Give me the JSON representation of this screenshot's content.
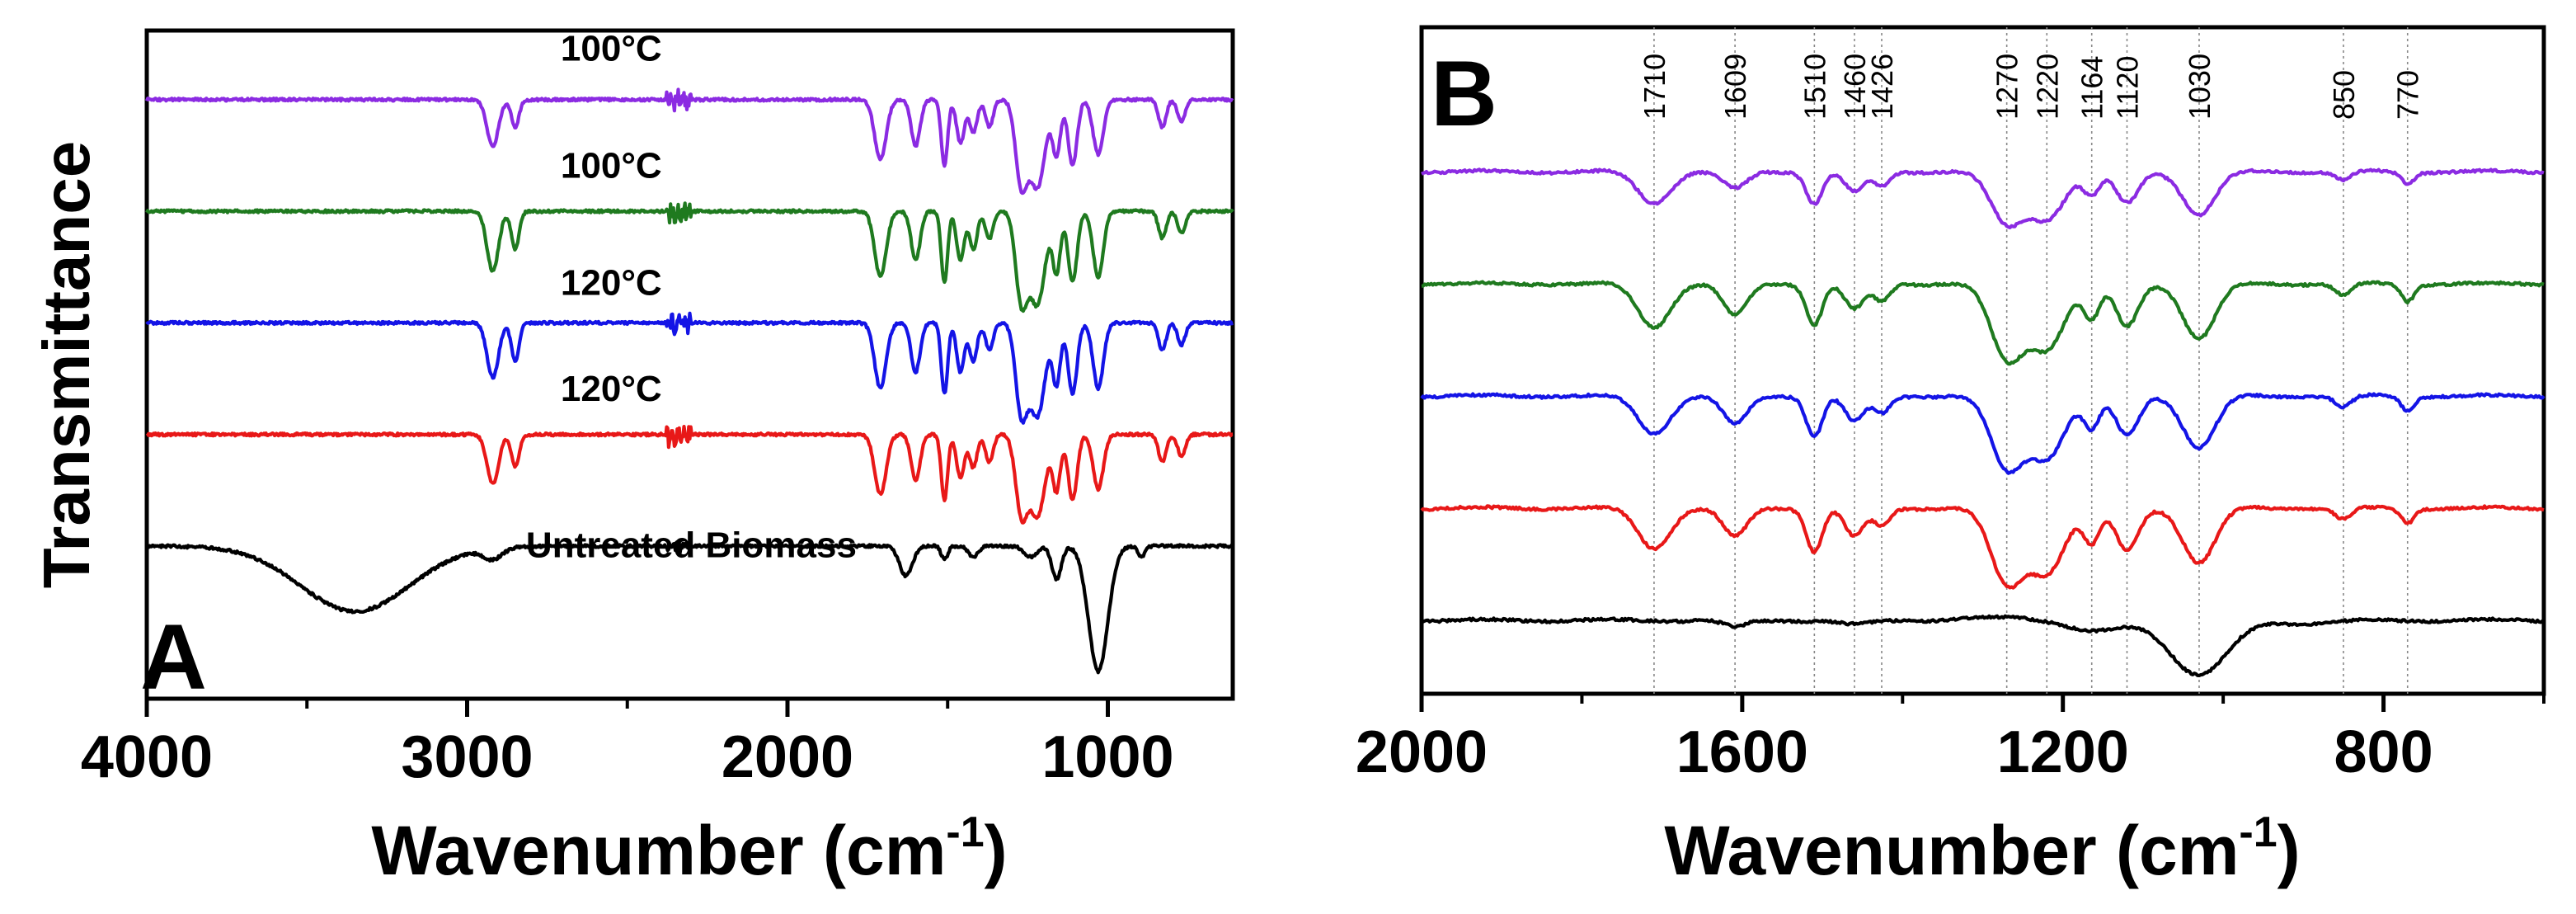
{
  "chart_data": [
    {
      "panel": "A",
      "type": "line",
      "title": "",
      "xlabel": "Wavenumber (cm",
      "xlabel_sup": "-1",
      "xlabel_close": ")",
      "ylabel": "Transmittance",
      "xlim": [
        4000,
        610
      ],
      "xticks": [
        4000,
        3000,
        2000,
        1000
      ],
      "xtick_labels": [
        "4000",
        "3000",
        "2000",
        "1000"
      ],
      "yticks": [],
      "series": [
        {
          "name": "100°C",
          "color": "#8b2be2",
          "offset": 4,
          "bands": [
            [
              2920,
              0.85,
              18
            ],
            [
              2850,
              0.5,
              12
            ],
            [
              1710,
              1.1,
              18
            ],
            [
              1600,
              0.85,
              14
            ],
            [
              1510,
              1.2,
              10
            ],
            [
              1460,
              0.8,
              12
            ],
            [
              1420,
              0.6,
              12
            ],
            [
              1370,
              0.5,
              12
            ],
            [
              1270,
              1.5,
              18
            ],
            [
              1220,
              1.6,
              24
            ],
            [
              1160,
              1.0,
              12
            ],
            [
              1110,
              1.2,
              14
            ],
            [
              1030,
              1.0,
              16
            ],
            [
              830,
              0.5,
              12
            ],
            [
              770,
              0.4,
              12
            ]
          ]
        },
        {
          "name": "100°C",
          "color": "#1f7a1f",
          "offset": 3,
          "bands": [
            [
              2920,
              1.1,
              18
            ],
            [
              2850,
              0.7,
              12
            ],
            [
              1710,
              1.2,
              18
            ],
            [
              1600,
              0.9,
              14
            ],
            [
              1510,
              1.3,
              10
            ],
            [
              1460,
              0.9,
              12
            ],
            [
              1420,
              0.7,
              12
            ],
            [
              1370,
              0.5,
              12
            ],
            [
              1270,
              1.6,
              18
            ],
            [
              1220,
              1.7,
              24
            ],
            [
              1160,
              1.1,
              12
            ],
            [
              1110,
              1.3,
              14
            ],
            [
              1030,
              1.2,
              16
            ],
            [
              830,
              0.5,
              12
            ],
            [
              770,
              0.4,
              12
            ]
          ]
        },
        {
          "name": "120°C",
          "color": "#1414e6",
          "offset": 2,
          "bands": [
            [
              2920,
              1.0,
              18
            ],
            [
              2850,
              0.7,
              12
            ],
            [
              1710,
              1.2,
              18
            ],
            [
              1600,
              0.9,
              14
            ],
            [
              1510,
              1.3,
              10
            ],
            [
              1460,
              0.9,
              12
            ],
            [
              1420,
              0.7,
              12
            ],
            [
              1370,
              0.5,
              12
            ],
            [
              1270,
              1.6,
              18
            ],
            [
              1220,
              1.7,
              24
            ],
            [
              1160,
              1.1,
              12
            ],
            [
              1110,
              1.3,
              14
            ],
            [
              1030,
              1.2,
              16
            ],
            [
              830,
              0.5,
              12
            ],
            [
              770,
              0.4,
              12
            ]
          ]
        },
        {
          "name": "120°C",
          "color": "#e81818",
          "offset": 1,
          "bands": [
            [
              2920,
              0.9,
              18
            ],
            [
              2850,
              0.6,
              12
            ],
            [
              1710,
              1.1,
              18
            ],
            [
              1600,
              0.85,
              14
            ],
            [
              1510,
              1.2,
              10
            ],
            [
              1460,
              0.8,
              12
            ],
            [
              1420,
              0.6,
              12
            ],
            [
              1370,
              0.5,
              12
            ],
            [
              1270,
              1.4,
              18
            ],
            [
              1220,
              1.5,
              24
            ],
            [
              1160,
              1.0,
              12
            ],
            [
              1110,
              1.2,
              14
            ],
            [
              1030,
              1.0,
              16
            ],
            [
              830,
              0.5,
              12
            ],
            [
              770,
              0.4,
              12
            ]
          ]
        },
        {
          "name": "Untreated Biomass",
          "color": "#000000",
          "offset": 0,
          "bands": [
            [
              3350,
              1.2,
              170
            ],
            [
              2920,
              0.2,
              30
            ],
            [
              1630,
              0.55,
              20
            ],
            [
              1510,
              0.25,
              10
            ],
            [
              1420,
              0.2,
              15
            ],
            [
              1240,
              0.2,
              20
            ],
            [
              1160,
              0.6,
              15
            ],
            [
              1030,
              2.3,
              30
            ],
            [
              895,
              0.2,
              10
            ]
          ]
        }
      ],
      "trace_labels": [
        {
          "text": "100°C",
          "x": 2550,
          "y": 4.35
        },
        {
          "text": "100°C",
          "x": 2550,
          "y": 3.3
        },
        {
          "text": "120°C",
          "x": 2550,
          "y": 2.25
        },
        {
          "text": "120°C",
          "x": 2550,
          "y": 1.3
        },
        {
          "text": "Untreated Biomass",
          "x": 2300,
          "y": -0.1
        }
      ]
    },
    {
      "panel": "B",
      "type": "line",
      "title": "",
      "xlabel": "Wavenumber (cm",
      "xlabel_sup": "-1",
      "xlabel_close": ")",
      "ylabel": "",
      "xlim": [
        2000,
        600
      ],
      "xticks": [
        2000,
        1600,
        1200,
        800
      ],
      "xtick_labels": [
        "2000",
        "1600",
        "1200",
        "800"
      ],
      "peak_lines": [
        1710,
        1609,
        1510,
        1460,
        1426,
        1270,
        1220,
        1164,
        1120,
        1030,
        850,
        770
      ],
      "peak_labels": [
        "1710",
        "1609",
        "1510",
        "1460",
        "1426",
        "1270",
        "1220",
        "1164",
        "1120",
        "1030",
        "850",
        "770"
      ],
      "series": [
        {
          "name": "100°C",
          "color": "#8b2be2",
          "offset": 4,
          "bands": [
            [
              1710,
              0.55,
              20
            ],
            [
              1609,
              0.3,
              15
            ],
            [
              1510,
              0.55,
              10
            ],
            [
              1460,
              0.35,
              12
            ],
            [
              1426,
              0.25,
              10
            ],
            [
              1270,
              0.9,
              20
            ],
            [
              1220,
              0.8,
              22
            ],
            [
              1164,
              0.4,
              10
            ],
            [
              1120,
              0.55,
              14
            ],
            [
              1030,
              0.75,
              20
            ],
            [
              850,
              0.15,
              10
            ],
            [
              770,
              0.2,
              8
            ]
          ]
        },
        {
          "name": "100°C",
          "color": "#1f7a1f",
          "offset": 3,
          "bands": [
            [
              1710,
              0.75,
              20
            ],
            [
              1609,
              0.55,
              15
            ],
            [
              1510,
              0.7,
              10
            ],
            [
              1460,
              0.45,
              12
            ],
            [
              1426,
              0.3,
              10
            ],
            [
              1270,
              1.3,
              20
            ],
            [
              1220,
              1.1,
              22
            ],
            [
              1164,
              0.6,
              10
            ],
            [
              1120,
              0.75,
              14
            ],
            [
              1030,
              0.95,
              20
            ],
            [
              850,
              0.2,
              10
            ],
            [
              770,
              0.3,
              8
            ]
          ]
        },
        {
          "name": "120°C",
          "color": "#1414e6",
          "offset": 2,
          "bands": [
            [
              1710,
              0.65,
              20
            ],
            [
              1609,
              0.5,
              15
            ],
            [
              1510,
              0.7,
              10
            ],
            [
              1460,
              0.45,
              12
            ],
            [
              1426,
              0.3,
              10
            ],
            [
              1270,
              1.25,
              20
            ],
            [
              1220,
              1.05,
              22
            ],
            [
              1164,
              0.55,
              10
            ],
            [
              1120,
              0.7,
              14
            ],
            [
              1030,
              0.9,
              20
            ],
            [
              850,
              0.2,
              10
            ],
            [
              770,
              0.25,
              8
            ]
          ]
        },
        {
          "name": "120°C",
          "color": "#e81818",
          "offset": 1,
          "bands": [
            [
              1710,
              0.7,
              20
            ],
            [
              1609,
              0.5,
              15
            ],
            [
              1510,
              0.75,
              10
            ],
            [
              1460,
              0.5,
              12
            ],
            [
              1426,
              0.3,
              10
            ],
            [
              1270,
              1.3,
              20
            ],
            [
              1220,
              1.1,
              22
            ],
            [
              1164,
              0.6,
              10
            ],
            [
              1120,
              0.75,
              14
            ],
            [
              1030,
              0.95,
              20
            ],
            [
              850,
              0.2,
              10
            ],
            [
              770,
              0.25,
              8
            ]
          ]
        },
        {
          "name": "Untreated Biomass",
          "color": "#000000",
          "offset": 0,
          "bands": [
            [
              1609,
              0.12,
              15
            ],
            [
              1460,
              0.08,
              20
            ],
            [
              1260,
              -0.05,
              50
            ],
            [
              1160,
              0.2,
              35
            ],
            [
              1030,
              0.95,
              35
            ],
            [
              900,
              0.05,
              40
            ]
          ]
        }
      ]
    }
  ]
}
